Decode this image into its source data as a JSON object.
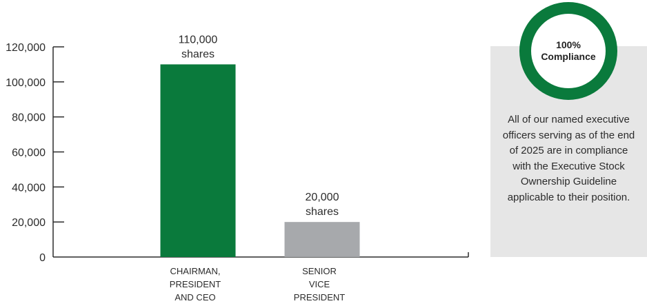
{
  "chart_data": {
    "type": "bar",
    "categories": [
      [
        "CHAIRMAN,",
        "PRESIDENT",
        "AND CEO"
      ],
      [
        "SENIOR",
        "VICE",
        "PRESIDENT"
      ]
    ],
    "values": [
      110000,
      20000
    ],
    "data_labels": [
      [
        "110,000",
        "shares"
      ],
      [
        "20,000",
        "shares"
      ]
    ],
    "bar_colors": [
      "#0a7a3c",
      "#a7a9ac"
    ],
    "ylim": [
      0,
      120000
    ],
    "yticks": [
      0,
      20000,
      40000,
      60000,
      80000,
      100000,
      120000
    ],
    "ytick_labels": [
      "0",
      "20,000",
      "40,000",
      "60,000",
      "80,000",
      "100,000",
      "120,000"
    ],
    "grid": false,
    "title": "",
    "xlabel": "",
    "ylabel": ""
  },
  "compliance": {
    "badge_line1": "100%",
    "badge_line2": "Compliance",
    "description": "All of our named executive officers serving as of the end of 2025 are in compliance with the Executive Stock Ownership Guideline applicable to their position.",
    "ring_color": "#0a7a3c",
    "panel_color": "#e6e6e6"
  }
}
